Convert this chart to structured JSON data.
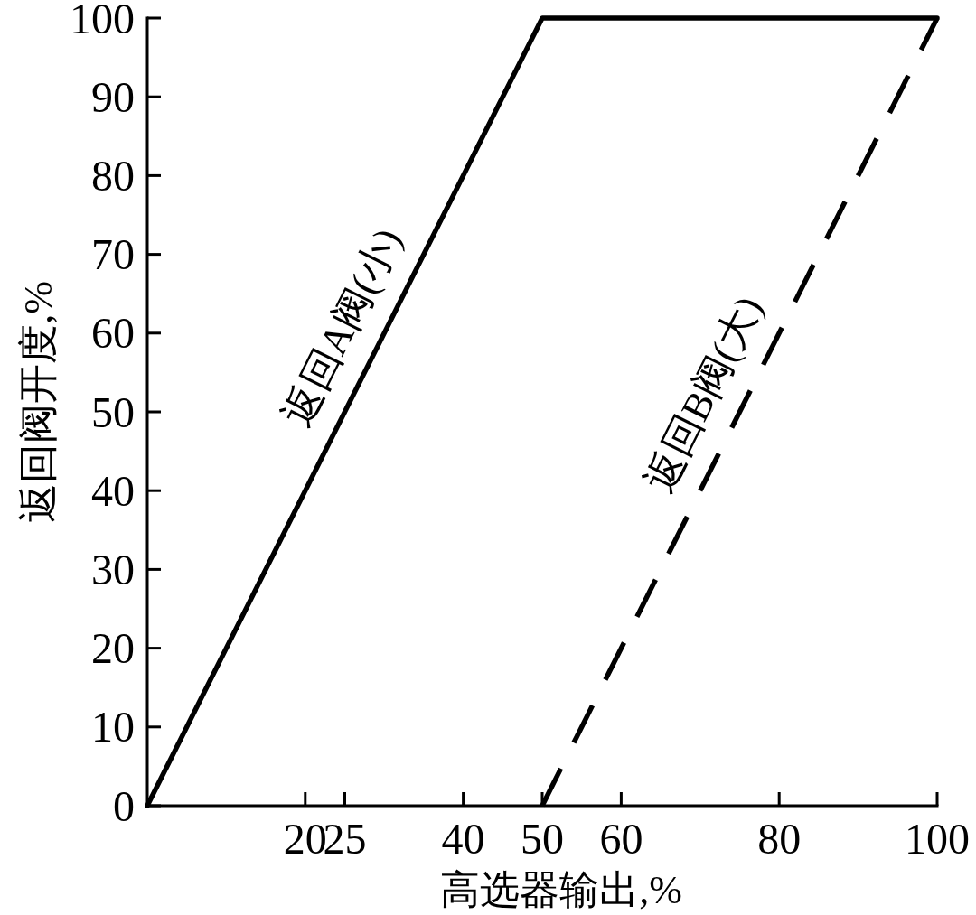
{
  "chart_data": {
    "type": "line",
    "xlabel": "高选器输出,%",
    "ylabel": "返回阀开度,%",
    "xlim": [
      0,
      100
    ],
    "ylim": [
      0,
      100
    ],
    "xticks": [
      20,
      25,
      40,
      50,
      60,
      80,
      100
    ],
    "yticks": [
      0,
      10,
      20,
      30,
      40,
      50,
      60,
      70,
      80,
      90,
      100
    ],
    "series": [
      {
        "name": "返回A阀(小)",
        "color": "#000000",
        "line_style": "solid",
        "x": [
          0,
          50,
          100
        ],
        "values": [
          0,
          100,
          100
        ]
      },
      {
        "name": "返回B阀(大)",
        "color": "#000000",
        "line_style": "dashed",
        "x": [
          50,
          100
        ],
        "values": [
          0,
          100
        ]
      }
    ]
  }
}
